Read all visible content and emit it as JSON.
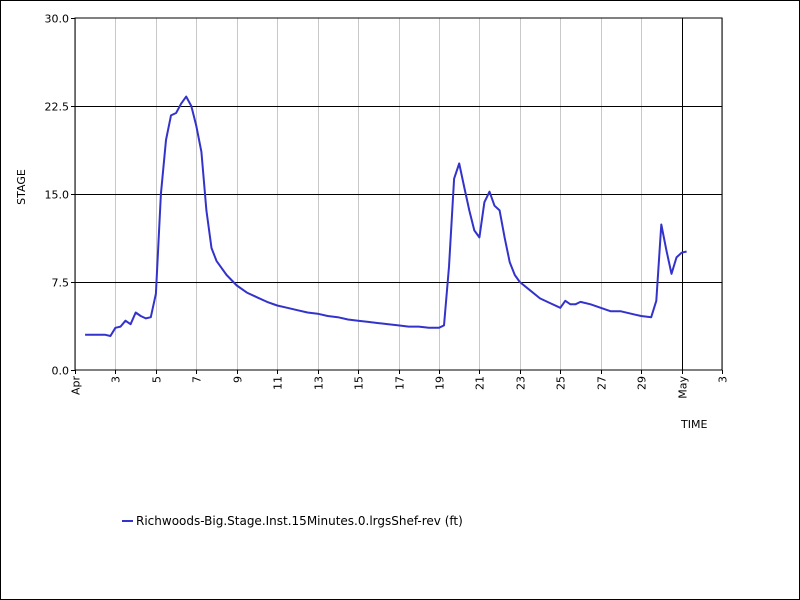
{
  "chart_data": {
    "type": "line",
    "xlabel": "TIME",
    "ylabel": "STAGE",
    "xlim": [
      "2024-04-01",
      "2024-05-03"
    ],
    "ylim": [
      0,
      30
    ],
    "x_ticks": [
      {
        "date": "2024-04-01",
        "label": "Apr"
      },
      {
        "date": "2024-04-03",
        "label": "3"
      },
      {
        "date": "2024-04-05",
        "label": "5"
      },
      {
        "date": "2024-04-07",
        "label": "7"
      },
      {
        "date": "2024-04-09",
        "label": "9"
      },
      {
        "date": "2024-04-11",
        "label": "11"
      },
      {
        "date": "2024-04-13",
        "label": "13"
      },
      {
        "date": "2024-04-15",
        "label": "15"
      },
      {
        "date": "2024-04-17",
        "label": "17"
      },
      {
        "date": "2024-04-19",
        "label": "19"
      },
      {
        "date": "2024-04-21",
        "label": "21"
      },
      {
        "date": "2024-04-23",
        "label": "23"
      },
      {
        "date": "2024-04-25",
        "label": "25"
      },
      {
        "date": "2024-04-27",
        "label": "27"
      },
      {
        "date": "2024-04-29",
        "label": "29"
      },
      {
        "date": "2024-05-01",
        "label": "May"
      },
      {
        "date": "2024-05-03",
        "label": "3"
      }
    ],
    "y_ticks": [
      {
        "value": 0,
        "label": "0.0"
      },
      {
        "value": 7.5,
        "label": "7.5"
      },
      {
        "value": 15,
        "label": "15.0"
      },
      {
        "value": 22.5,
        "label": "22.5"
      },
      {
        "value": 30,
        "label": "30.0"
      }
    ],
    "grid": {
      "vertical": true,
      "horizontal": true
    },
    "current_time_marker": "2024-05-01",
    "legend_position": "bottom-left",
    "colors": {
      "series": "#3333cc",
      "vgrid": "#c8c8c8",
      "hgrid": "#000000",
      "axes": "#000000"
    },
    "series": [
      {
        "name": "Richwoods-Big.Stage.Inst.15Minutes.0.lrgsShef-rev (ft)",
        "x": [
          "2024-04-01 12:00",
          "2024-04-02 00:00",
          "2024-04-02 12:00",
          "2024-04-02 18:00",
          "2024-04-03 00:00",
          "2024-04-03 06:00",
          "2024-04-03 12:00",
          "2024-04-03 18:00",
          "2024-04-04 00:00",
          "2024-04-04 06:00",
          "2024-04-04 12:00",
          "2024-04-04 18:00",
          "2024-04-05 00:00",
          "2024-04-05 06:00",
          "2024-04-05 12:00",
          "2024-04-05 18:00",
          "2024-04-06 00:00",
          "2024-04-06 06:00",
          "2024-04-06 12:00",
          "2024-04-06 18:00",
          "2024-04-07 00:00",
          "2024-04-07 06:00",
          "2024-04-07 12:00",
          "2024-04-07 18:00",
          "2024-04-08 00:00",
          "2024-04-08 12:00",
          "2024-04-09 00:00",
          "2024-04-09 12:00",
          "2024-04-10 00:00",
          "2024-04-10 12:00",
          "2024-04-11 00:00",
          "2024-04-11 12:00",
          "2024-04-12 00:00",
          "2024-04-12 12:00",
          "2024-04-13 00:00",
          "2024-04-13 12:00",
          "2024-04-14 00:00",
          "2024-04-14 12:00",
          "2024-04-15 00:00",
          "2024-04-15 12:00",
          "2024-04-16 00:00",
          "2024-04-16 12:00",
          "2024-04-17 00:00",
          "2024-04-17 12:00",
          "2024-04-18 00:00",
          "2024-04-18 12:00",
          "2024-04-19 00:00",
          "2024-04-19 06:00",
          "2024-04-19 12:00",
          "2024-04-19 18:00",
          "2024-04-20 00:00",
          "2024-04-20 06:00",
          "2024-04-20 12:00",
          "2024-04-20 18:00",
          "2024-04-21 00:00",
          "2024-04-21 06:00",
          "2024-04-21 12:00",
          "2024-04-21 18:00",
          "2024-04-22 00:00",
          "2024-04-22 06:00",
          "2024-04-22 12:00",
          "2024-04-22 18:00",
          "2024-04-23 00:00",
          "2024-04-23 12:00",
          "2024-04-24 00:00",
          "2024-04-24 12:00",
          "2024-04-25 00:00",
          "2024-04-25 06:00",
          "2024-04-25 12:00",
          "2024-04-25 18:00",
          "2024-04-26 00:00",
          "2024-04-26 12:00",
          "2024-04-27 00:00",
          "2024-04-27 12:00",
          "2024-04-28 00:00",
          "2024-04-28 12:00",
          "2024-04-29 00:00",
          "2024-04-29 12:00",
          "2024-04-29 18:00",
          "2024-04-30 00:00",
          "2024-04-30 06:00",
          "2024-04-30 12:00",
          "2024-04-30 18:00",
          "2024-05-01 00:00",
          "2024-05-01 06:00"
        ],
        "y": [
          3.0,
          3.0,
          3.0,
          2.9,
          3.6,
          3.7,
          4.2,
          3.9,
          4.9,
          4.6,
          4.4,
          4.5,
          6.5,
          15.0,
          19.6,
          21.7,
          21.9,
          22.7,
          23.3,
          22.5,
          20.8,
          18.6,
          13.6,
          10.4,
          9.3,
          8.1,
          7.2,
          6.6,
          6.2,
          5.8,
          5.5,
          5.3,
          5.1,
          4.9,
          4.8,
          4.6,
          4.5,
          4.3,
          4.2,
          4.1,
          4.0,
          3.9,
          3.8,
          3.7,
          3.7,
          3.6,
          3.6,
          3.8,
          8.8,
          16.3,
          17.6,
          15.6,
          13.6,
          11.9,
          11.3,
          14.3,
          15.2,
          14.0,
          13.6,
          11.3,
          9.2,
          8.1,
          7.5,
          6.8,
          6.1,
          5.7,
          5.3,
          5.9,
          5.6,
          5.6,
          5.8,
          5.6,
          5.3,
          5.0,
          5.0,
          4.8,
          4.6,
          4.5,
          5.9,
          12.4,
          10.2,
          8.2,
          9.6,
          10.0,
          10.1
        ]
      }
    ]
  }
}
